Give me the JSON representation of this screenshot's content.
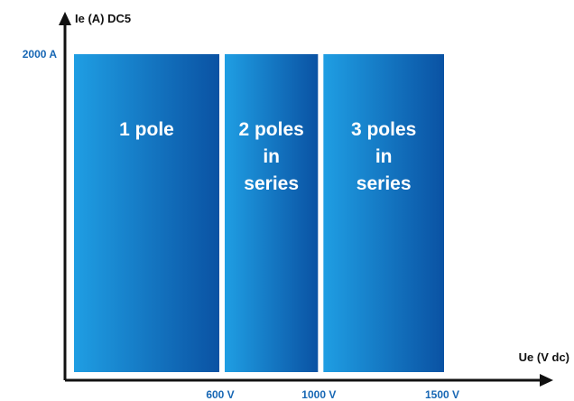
{
  "chart_data": {
    "type": "bar",
    "xlabel": "Ue (V dc)",
    "ylabel": "Ie (A) DC5",
    "x_ticks": [
      "600 V",
      "1000 V",
      "1500 V"
    ],
    "y_ticks": [
      "2000 A"
    ],
    "segments": [
      {
        "label_lines": [
          "1 pole"
        ],
        "x_from": 0,
        "x_to": 600,
        "y_max": 2000
      },
      {
        "label_lines": [
          "2 poles",
          "in",
          "series"
        ],
        "x_from": 600,
        "x_to": 1000,
        "y_max": 2000
      },
      {
        "label_lines": [
          "3 poles",
          "in",
          "series"
        ],
        "x_from": 1000,
        "x_to": 1500,
        "y_max": 2000
      }
    ],
    "xlim": [
      0,
      1500
    ],
    "ylim": [
      0,
      2000
    ],
    "grid": false,
    "legend": "none"
  },
  "colors": {
    "bar_light": "#1f9ee3",
    "bar_dark": "#0a52a3",
    "tick_text": "#1767b4",
    "axis": "#111111"
  }
}
